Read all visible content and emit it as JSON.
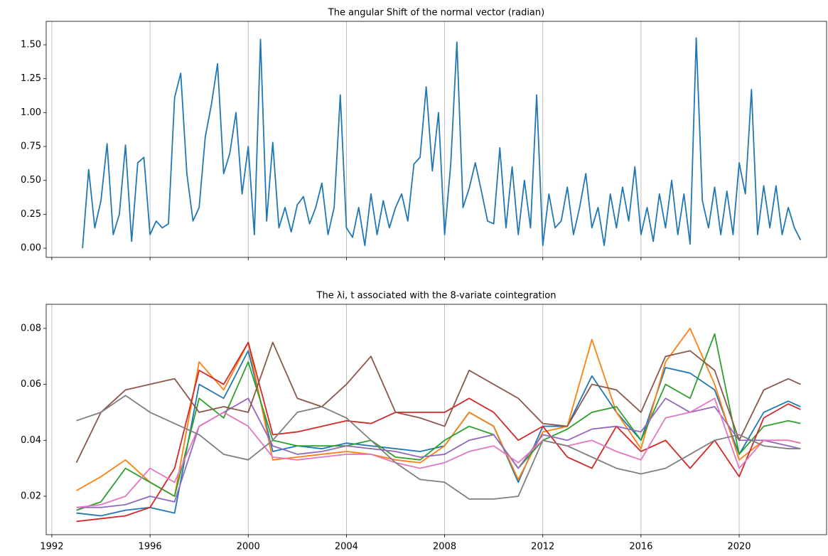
{
  "chart_data": [
    {
      "type": "line",
      "title": "The angular Shift of the normal vector (radian)",
      "x": [
        1993.25,
        1993.5,
        1993.75,
        1994,
        1994.25,
        1994.5,
        1994.75,
        1995,
        1995.25,
        1995.5,
        1995.75,
        1996,
        1996.25,
        1996.5,
        1996.75,
        1997,
        1997.25,
        1997.5,
        1997.75,
        1998,
        1998.25,
        1998.5,
        1998.75,
        1999,
        1999.25,
        1999.5,
        1999.75,
        2000,
        2000.25,
        2000.5,
        2000.75,
        2001,
        2001.25,
        2001.5,
        2001.75,
        2002,
        2002.25,
        2002.5,
        2002.75,
        2003,
        2003.25,
        2003.5,
        2003.75,
        2004,
        2004.25,
        2004.5,
        2004.75,
        2005,
        2005.25,
        2005.5,
        2005.75,
        2006,
        2006.25,
        2006.5,
        2006.75,
        2007,
        2007.25,
        2007.5,
        2007.75,
        2008,
        2008.25,
        2008.5,
        2008.75,
        2009,
        2009.25,
        2009.5,
        2009.75,
        2010,
        2010.25,
        2010.5,
        2010.75,
        2011,
        2011.25,
        2011.5,
        2011.75,
        2012,
        2012.25,
        2012.5,
        2012.75,
        2013,
        2013.25,
        2013.5,
        2013.75,
        2014,
        2014.25,
        2014.5,
        2014.75,
        2015,
        2015.25,
        2015.5,
        2015.75,
        2016,
        2016.25,
        2016.5,
        2016.75,
        2017,
        2017.25,
        2017.5,
        2017.75,
        2018,
        2018.25,
        2018.5,
        2018.75,
        2019,
        2019.25,
        2019.5,
        2019.75,
        2020,
        2020.25,
        2020.5,
        2020.75,
        2021,
        2021.25,
        2021.5,
        2021.75,
        2022,
        2022.25,
        2022.5
      ],
      "series": [
        {
          "color": "#1f77b4",
          "values": [
            0.0,
            0.58,
            0.15,
            0.35,
            0.77,
            0.1,
            0.25,
            0.76,
            0.05,
            0.63,
            0.67,
            0.1,
            0.2,
            0.15,
            0.18,
            1.11,
            1.29,
            0.55,
            0.2,
            0.3,
            0.82,
            1.06,
            1.36,
            0.55,
            0.7,
            1.0,
            0.4,
            0.75,
            0.1,
            1.54,
            0.2,
            0.78,
            0.15,
            0.3,
            0.12,
            0.32,
            0.38,
            0.18,
            0.3,
            0.48,
            0.1,
            0.3,
            1.13,
            0.15,
            0.08,
            0.3,
            0.02,
            0.4,
            0.1,
            0.35,
            0.15,
            0.3,
            0.4,
            0.2,
            0.62,
            0.67,
            1.19,
            0.57,
            1.0,
            0.1,
            0.62,
            1.52,
            0.3,
            0.44,
            0.63,
            0.42,
            0.2,
            0.18,
            0.74,
            0.15,
            0.6,
            0.1,
            0.5,
            0.15,
            1.13,
            0.02,
            0.4,
            0.15,
            0.2,
            0.45,
            0.1,
            0.3,
            0.55,
            0.15,
            0.3,
            0.02,
            0.4,
            0.15,
            0.45,
            0.2,
            0.6,
            0.1,
            0.3,
            0.05,
            0.4,
            0.15,
            0.5,
            0.1,
            0.4,
            0.03,
            1.55,
            0.35,
            0.15,
            0.45,
            0.1,
            0.42,
            0.1,
            0.63,
            0.4,
            1.17,
            0.1,
            0.46,
            0.15,
            0.46,
            0.1,
            0.3,
            0.15,
            0.06
          ]
        }
      ],
      "xlim": [
        1991.77,
        2023.56
      ],
      "xticks": [
        1992,
        1996,
        2000,
        2004,
        2008,
        2012,
        2016,
        2020
      ],
      "ylim": [
        -0.068,
        1.673
      ],
      "yticks": [
        {
          "value": 0,
          "label": "0.00"
        },
        0.25,
        {
          "value": 0.5,
          "label": "0.50"
        },
        0.75,
        {
          "value": 1,
          "label": "1.00"
        },
        1.25,
        {
          "value": 1.5,
          "label": "1.50"
        }
      ],
      "grid": "x"
    },
    {
      "type": "line",
      "title": "The λi, t associated with the 8-variate cointegration",
      "x": [
        1993,
        1994,
        1995,
        1996,
        1997,
        1998,
        1999,
        2000,
        2001,
        2002,
        2003,
        2004,
        2005,
        2006,
        2007,
        2008,
        2009,
        2010,
        2011,
        2012,
        2013,
        2014,
        2015,
        2016,
        2017,
        2018,
        2019,
        2020,
        2021,
        2022,
        2022.5
      ],
      "series": [
        {
          "color": "#1f77b4",
          "values": [
            0.014,
            0.013,
            0.015,
            0.016,
            0.014,
            0.06,
            0.055,
            0.072,
            0.036,
            0.038,
            0.037,
            0.039,
            0.038,
            0.037,
            0.036,
            0.038,
            0.05,
            0.045,
            0.025,
            0.045,
            0.045,
            0.063,
            0.05,
            0.04,
            0.066,
            0.064,
            0.058,
            0.035,
            0.05,
            0.054,
            0.052
          ]
        },
        {
          "color": "#ff7f0e",
          "values": [
            0.022,
            0.027,
            0.033,
            0.025,
            0.02,
            0.068,
            0.058,
            0.075,
            0.033,
            0.034,
            0.035,
            0.036,
            0.035,
            0.033,
            0.032,
            0.038,
            0.05,
            0.045,
            0.026,
            0.043,
            0.045,
            0.076,
            0.05,
            0.037,
            0.068,
            0.08,
            0.06,
            0.033,
            0.04,
            0.04,
            0.039
          ]
        },
        {
          "color": "#2ca02c",
          "values": [
            0.015,
            0.018,
            0.03,
            0.025,
            0.02,
            0.055,
            0.048,
            0.068,
            0.04,
            0.038,
            0.038,
            0.038,
            0.04,
            0.034,
            0.033,
            0.04,
            0.045,
            0.042,
            0.03,
            0.04,
            0.044,
            0.05,
            0.052,
            0.04,
            0.06,
            0.055,
            0.078,
            0.035,
            0.045,
            0.047,
            0.046
          ]
        },
        {
          "color": "#d62728",
          "values": [
            0.011,
            0.012,
            0.013,
            0.016,
            0.03,
            0.065,
            0.06,
            0.075,
            0.042,
            0.043,
            0.045,
            0.047,
            0.046,
            0.05,
            0.05,
            0.05,
            0.055,
            0.05,
            0.04,
            0.045,
            0.034,
            0.03,
            0.045,
            0.036,
            0.04,
            0.03,
            0.04,
            0.027,
            0.048,
            0.053,
            0.051
          ]
        },
        {
          "color": "#9467bd",
          "values": [
            0.016,
            0.016,
            0.017,
            0.02,
            0.018,
            0.045,
            0.05,
            0.055,
            0.038,
            0.035,
            0.036,
            0.038,
            0.037,
            0.036,
            0.034,
            0.035,
            0.04,
            0.042,
            0.03,
            0.042,
            0.04,
            0.044,
            0.045,
            0.043,
            0.055,
            0.05,
            0.052,
            0.04,
            0.04,
            0.038,
            0.037
          ]
        },
        {
          "color": "#8c564b",
          "values": [
            0.032,
            0.05,
            0.058,
            0.06,
            0.062,
            0.05,
            0.052,
            0.05,
            0.075,
            0.055,
            0.052,
            0.06,
            0.07,
            0.05,
            0.048,
            0.045,
            0.065,
            0.06,
            0.055,
            0.046,
            0.045,
            0.06,
            0.058,
            0.05,
            0.07,
            0.072,
            0.065,
            0.04,
            0.058,
            0.062,
            0.06
          ]
        },
        {
          "color": "#e377c2",
          "values": [
            0.016,
            0.017,
            0.02,
            0.03,
            0.025,
            0.045,
            0.05,
            0.045,
            0.034,
            0.033,
            0.034,
            0.035,
            0.035,
            0.032,
            0.03,
            0.032,
            0.036,
            0.038,
            0.032,
            0.04,
            0.038,
            0.04,
            0.036,
            0.033,
            0.048,
            0.05,
            0.055,
            0.03,
            0.04,
            0.04,
            0.039
          ]
        },
        {
          "color": "#7f7f7f",
          "values": [
            0.047,
            0.05,
            0.056,
            0.05,
            0.046,
            0.042,
            0.035,
            0.033,
            0.04,
            0.05,
            0.052,
            0.048,
            0.04,
            0.032,
            0.026,
            0.025,
            0.019,
            0.019,
            0.02,
            0.04,
            0.038,
            0.034,
            0.03,
            0.028,
            0.03,
            0.035,
            0.04,
            0.042,
            0.038,
            0.037,
            0.037
          ]
        }
      ],
      "xlim": [
        1991.77,
        2023.56
      ],
      "xticks": [
        1992,
        1996,
        2000,
        2004,
        2008,
        2012,
        2016,
        2020
      ],
      "xticklabels": true,
      "ylim": [
        0.00627,
        0.0886
      ],
      "yticks": [
        0.02,
        0.04,
        0.06,
        0.08
      ],
      "grid": "x"
    }
  ]
}
